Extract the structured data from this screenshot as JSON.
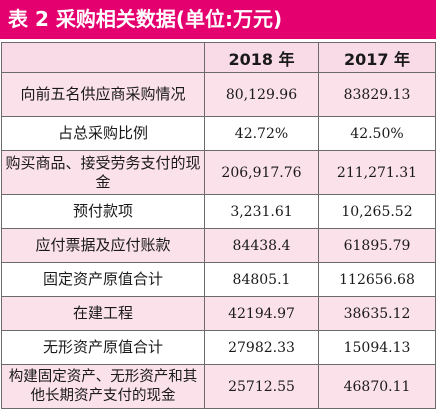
{
  "title": "表 2   采购相关数据(单位:万元)",
  "header": {
    "blank": "",
    "col1": "2018 年",
    "col2": "2017 年"
  },
  "rows": [
    {
      "label": "向前五名供应商采购情况",
      "y2018": "80,129.96",
      "y2017": "83829.13"
    },
    {
      "label": "占总采购比例",
      "y2018": "42.72%",
      "y2017": "42.50%"
    },
    {
      "label": "购买商品、接受劳务支付的现金",
      "y2018": "206,917.76",
      "y2017": "211,271.31"
    },
    {
      "label": "预付款项",
      "y2018": "3,231.61",
      "y2017": "10,265.52"
    },
    {
      "label": "应付票据及应付账款",
      "y2018": "84438.4",
      "y2017": "61895.79"
    },
    {
      "label": "固定资产原值合计",
      "y2018": "84805.1",
      "y2017": "112656.68"
    },
    {
      "label": "在建工程",
      "y2018": "42194.97",
      "y2017": "38635.12"
    },
    {
      "label": "无形资产原值合计",
      "y2018": "27982.33",
      "y2017": "15094.13"
    },
    {
      "label": "构建固定资产、无形资产和其他长期资产支付的现金",
      "y2018": "25712.55",
      "y2017": "46870.11"
    }
  ]
}
